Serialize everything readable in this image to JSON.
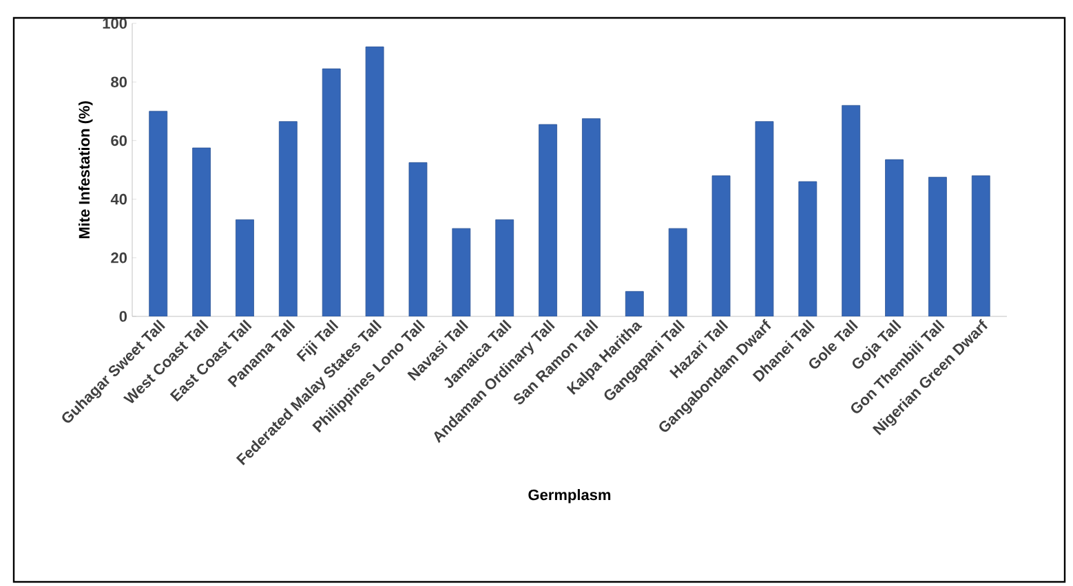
{
  "chart_data": {
    "type": "bar",
    "xlabel": "Germplasm",
    "ylabel": "Mite Infestation (%)",
    "categories": [
      "Guhagar Sweet Tall",
      "West Coast Tall",
      "East Coast Tall",
      "Panama Tall",
      "Fiji Tall",
      "Federated Malay States Tall",
      "Philippines Lono Tall",
      "Navasi Tall",
      "Jamaica Tall",
      "Andaman Ordinary Tall",
      "San Ramon Tall",
      "Kalpa Haritha",
      "Gangapani Tall",
      "Hazari Tall",
      "Gangabondam Dwarf",
      "Dhanei Tall",
      "Gole Tall",
      "Goja Tall",
      "Gon Thembili Tall",
      "Nigerian Green Dwarf"
    ],
    "values": [
      70,
      57.5,
      33,
      66.5,
      84.5,
      92,
      52.5,
      30,
      33,
      65.5,
      67.5,
      8.5,
      30,
      48,
      66.5,
      46,
      72,
      53.5,
      47.5,
      48
    ],
    "color": "#3567b8",
    "ylim": [
      0,
      100
    ],
    "yticks": [
      0,
      20,
      40,
      60,
      80,
      100
    ]
  }
}
